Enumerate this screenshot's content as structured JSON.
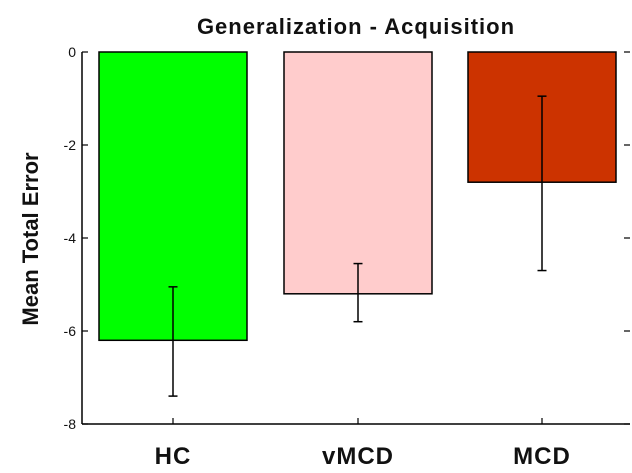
{
  "chart_data": {
    "type": "bar",
    "title": "Generalization - Acquisition",
    "xlabel": "",
    "ylabel": "Mean Total Error",
    "categories": [
      "HC",
      "vMCD",
      "MCD"
    ],
    "values": [
      -6.2,
      -5.2,
      -2.8
    ],
    "error_bars": [
      {
        "low": -7.4,
        "high": -5.05
      },
      {
        "low": -5.8,
        "high": -4.55
      },
      {
        "low": -4.7,
        "high": -0.95
      }
    ],
    "colors": [
      "#00ff00",
      "#ffcccc",
      "#cc3300"
    ],
    "ylim": [
      -8,
      0
    ],
    "yticks": [
      0,
      -2,
      -4,
      -6,
      -8
    ],
    "ytick_labels": [
      "0",
      "-2",
      "-4",
      "-6",
      "-8"
    ],
    "grid": false,
    "legend": "none"
  }
}
